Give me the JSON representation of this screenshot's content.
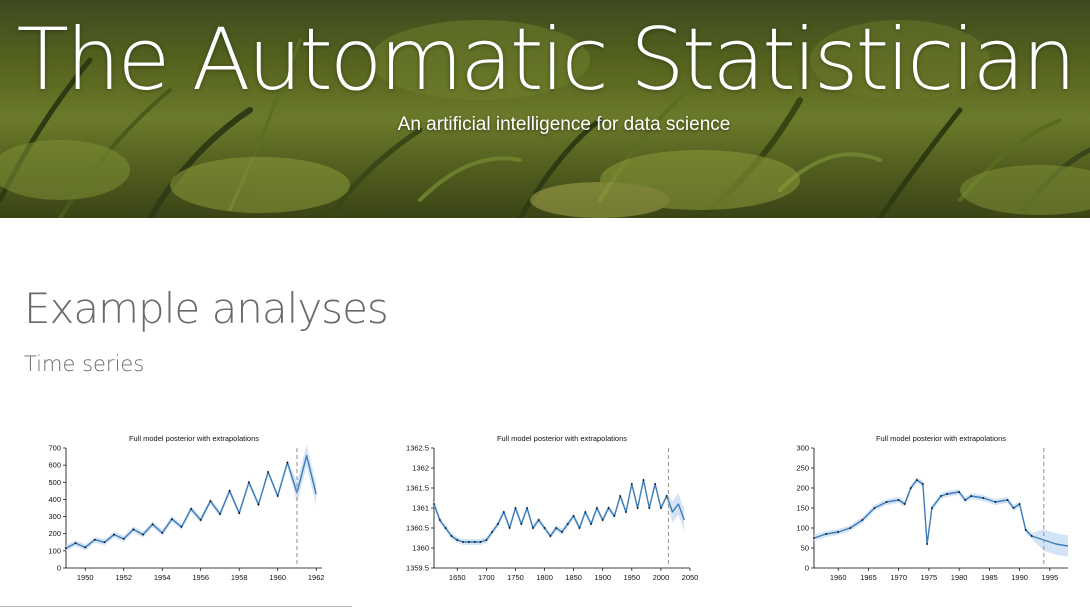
{
  "header": {
    "title": "The Automatic Statistician",
    "subtitle": "An artificial intelligence for data science"
  },
  "main": {
    "section_title": "Example analyses",
    "subsection_title": "Time series"
  },
  "colors": {
    "series": "#3d7db8",
    "band": "#cfe1f6",
    "points": "#000000",
    "divider": "#999999"
  },
  "chart_data": [
    {
      "type": "line",
      "title": "Full model posterior with extrapolations",
      "ylim": [
        0,
        700
      ],
      "xlim": [
        1949,
        1962.3
      ],
      "yticks": [
        0,
        100,
        200,
        300,
        400,
        500,
        600,
        700
      ],
      "xticks": [
        1950,
        1952,
        1954,
        1956,
        1958,
        1960,
        1962
      ],
      "extrapolation_start": 1961,
      "series": [
        {
          "x": [
            1949,
            1949.5,
            1950,
            1950.5,
            1951,
            1951.5,
            1952,
            1952.5,
            1953,
            1953.5,
            1954,
            1954.5,
            1955,
            1955.5,
            1956,
            1956.5,
            1957,
            1957.5,
            1958,
            1958.5,
            1959,
            1959.5,
            1960,
            1960.5,
            1961,
            1961.5,
            1962
          ],
          "y": [
            115,
            145,
            120,
            165,
            150,
            195,
            170,
            225,
            195,
            255,
            205,
            285,
            240,
            345,
            280,
            390,
            315,
            450,
            320,
            500,
            370,
            560,
            420,
            615,
            440,
            655,
            430
          ]
        }
      ]
    },
    {
      "type": "line",
      "title": "Full model posterior with extrapolations",
      "ylim": [
        1359.5,
        1362.5
      ],
      "xlim": [
        1610,
        2050
      ],
      "yticks": [
        1359.5,
        1360,
        1360.5,
        1361,
        1361.5,
        1362,
        1362.5
      ],
      "ytick_labels": [
        "1359.5",
        "1360",
        "1360.5",
        "1361",
        "1361.5",
        "1362",
        "1362.5"
      ],
      "xticks": [
        1650,
        1700,
        1750,
        1800,
        1850,
        1900,
        1950,
        2000,
        2050
      ],
      "extrapolation_start": 2013,
      "series": [
        {
          "x": [
            1610,
            1620,
            1630,
            1640,
            1650,
            1660,
            1670,
            1680,
            1690,
            1700,
            1710,
            1720,
            1730,
            1740,
            1750,
            1760,
            1770,
            1780,
            1790,
            1800,
            1810,
            1820,
            1830,
            1840,
            1850,
            1860,
            1870,
            1880,
            1890,
            1900,
            1910,
            1920,
            1930,
            1940,
            1950,
            1960,
            1970,
            1980,
            1990,
            2000,
            2010,
            2020,
            2030,
            2040
          ],
          "y": [
            1361.1,
            1360.7,
            1360.5,
            1360.3,
            1360.2,
            1360.15,
            1360.15,
            1360.15,
            1360.15,
            1360.2,
            1360.4,
            1360.6,
            1360.9,
            1360.5,
            1361.0,
            1360.6,
            1361.0,
            1360.5,
            1360.7,
            1360.5,
            1360.3,
            1360.5,
            1360.4,
            1360.6,
            1360.8,
            1360.5,
            1360.9,
            1360.6,
            1361.0,
            1360.7,
            1361.0,
            1360.8,
            1361.3,
            1360.9,
            1361.6,
            1361.0,
            1361.7,
            1361.0,
            1361.6,
            1361.0,
            1361.3,
            1360.9,
            1361.1,
            1360.7
          ]
        }
      ]
    },
    {
      "type": "line",
      "title": "Full model posterior with extrapolations",
      "ylim": [
        0,
        300
      ],
      "xlim": [
        1956,
        1998
      ],
      "yticks": [
        0,
        50,
        100,
        150,
        200,
        250,
        300
      ],
      "xticks": [
        1960,
        1965,
        1970,
        1975,
        1980,
        1985,
        1990,
        1995
      ],
      "extrapolation_start": 1994,
      "series": [
        {
          "x": [
            1956,
            1958,
            1960,
            1962,
            1964,
            1966,
            1968,
            1970,
            1971,
            1972,
            1973,
            1974,
            1974.7,
            1975.5,
            1977,
            1978,
            1980,
            1981,
            1982,
            1984,
            1986,
            1988,
            1989,
            1990,
            1991,
            1992,
            1994,
            1996,
            1998
          ],
          "y": [
            75,
            85,
            90,
            100,
            120,
            150,
            165,
            170,
            160,
            200,
            220,
            210,
            60,
            150,
            180,
            185,
            190,
            170,
            180,
            175,
            165,
            170,
            150,
            160,
            95,
            80,
            70,
            60,
            55
          ]
        }
      ]
    }
  ]
}
